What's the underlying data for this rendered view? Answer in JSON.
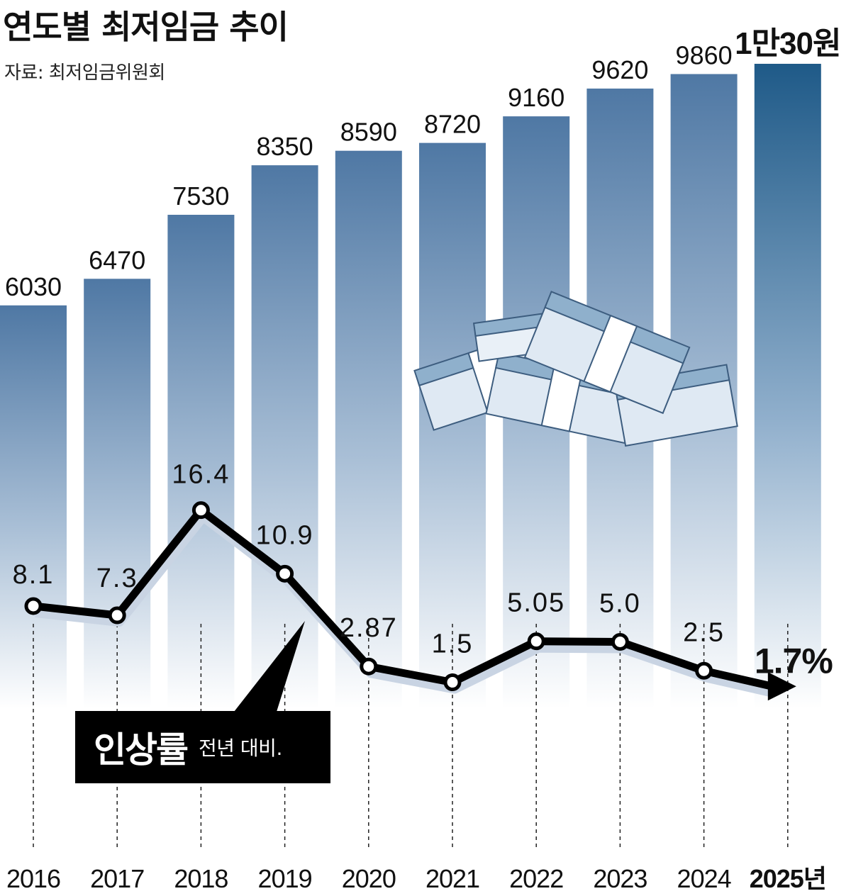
{
  "title": "연도별 최저임금 추이",
  "source": "자료: 최저임금위원회",
  "legend": {
    "main": "인상률",
    "sub": "전년 대비."
  },
  "colors": {
    "bar_top": "#4f78a4",
    "bar_bottom": "#ffffff",
    "bar_last_top": "#1f5a88",
    "line": "#000000",
    "line_shadow": "#c9d4e3",
    "marker_fill": "#ffffff"
  },
  "icons": [
    "money-bundles-illustration"
  ],
  "chart_data": [
    {
      "type": "bar",
      "categories": [
        "2016",
        "2017",
        "2018",
        "2019",
        "2020",
        "2021",
        "2022",
        "2023",
        "2024",
        "2025년"
      ],
      "values": [
        6030,
        6470,
        7530,
        8350,
        8590,
        8720,
        9160,
        9620,
        9860,
        10030
      ],
      "labels": [
        "6030",
        "6470",
        "7530",
        "8350",
        "8590",
        "8720",
        "9160",
        "9620",
        "9860",
        "1만30원"
      ],
      "highlight_last": true
    },
    {
      "type": "line",
      "name": "인상률",
      "categories": [
        "2016",
        "2017",
        "2018",
        "2019",
        "2020",
        "2021",
        "2022",
        "2023",
        "2024",
        "2025년"
      ],
      "values": [
        8.1,
        7.3,
        16.4,
        10.9,
        2.87,
        1.5,
        5.05,
        5.0,
        2.5,
        1.7
      ],
      "labels": [
        "8.1",
        "7.3",
        "16.4",
        "10.9",
        "2.87",
        "1.5",
        "5.05",
        "5.0",
        "2.5",
        "1.7%"
      ],
      "last_point_arrow": true
    }
  ]
}
